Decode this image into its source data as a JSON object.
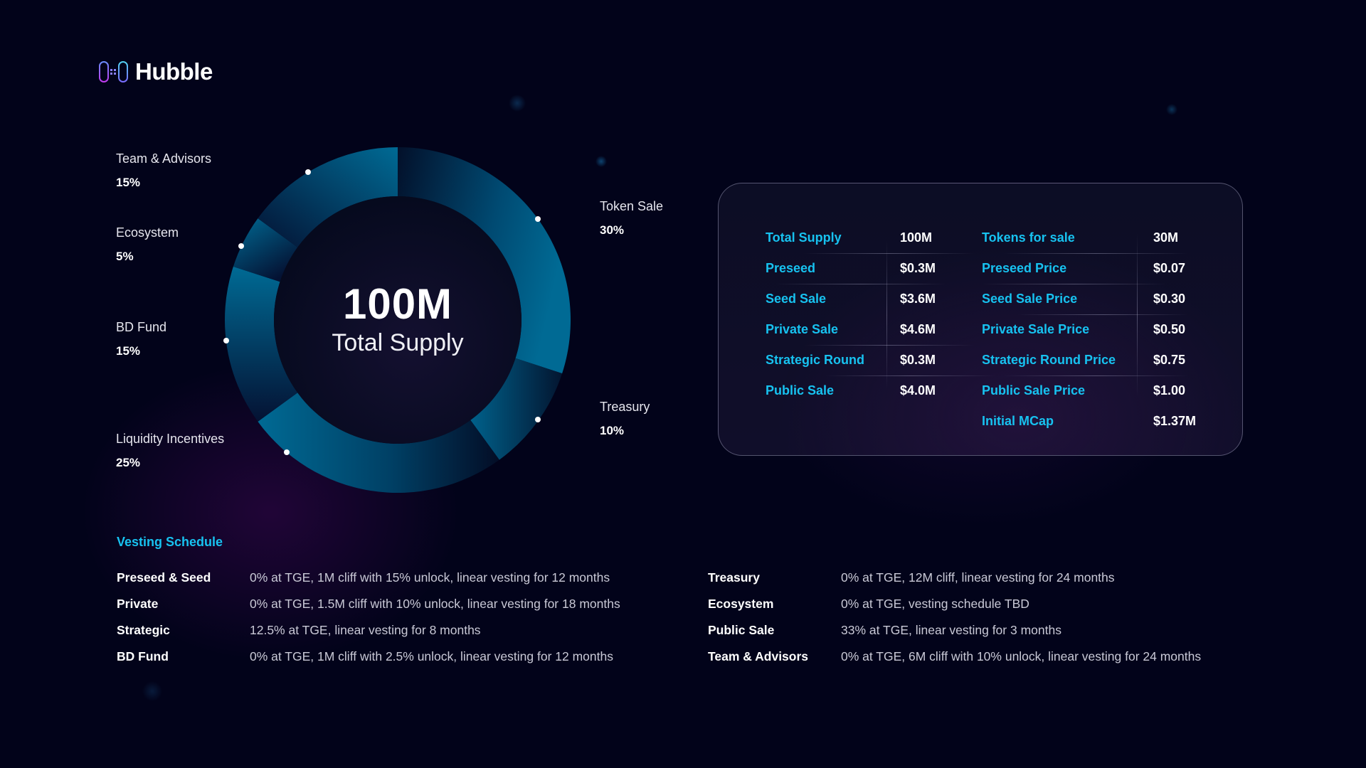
{
  "brand": {
    "name": "Hubble",
    "logo_icon": "hubble-logo-icon"
  },
  "colors": {
    "background": "#02031a",
    "accent_cyan": "#17c2f0",
    "segment_bright": "#006a94",
    "segment_dark": "#031028",
    "text_primary": "#ffffff",
    "text_secondary": "#c9c9d6"
  },
  "chart_data": {
    "type": "pie",
    "variant": "donut",
    "title": "Total Supply",
    "center_value": "100M",
    "center_label": "Total Supply",
    "categories": [
      "Token Sale",
      "Treasury",
      "Liquidity Incentives",
      "BD Fund",
      "Ecosystem",
      "Team & Advisors"
    ],
    "values": [
      30,
      10,
      25,
      15,
      5,
      15
    ],
    "unit": "%",
    "start_angle_deg": 0,
    "direction": "clockwise",
    "legend_position": "callouts"
  },
  "callouts": [
    {
      "name": "Team & Advisors",
      "pct": "15%"
    },
    {
      "name": "Ecosystem",
      "pct": "5%"
    },
    {
      "name": "BD Fund",
      "pct": "15%"
    },
    {
      "name": "Liquidity Incentives",
      "pct": "25%"
    },
    {
      "name": "Token Sale",
      "pct": "30%"
    },
    {
      "name": "Treasury",
      "pct": "10%"
    }
  ],
  "center": {
    "value": "100M",
    "label": "Total Supply"
  },
  "stats_card": {
    "left": [
      {
        "label": "Total Supply",
        "value": "100M"
      },
      {
        "label": "Preseed",
        "value": "$0.3M"
      },
      {
        "label": "Seed Sale",
        "value": "$3.6M"
      },
      {
        "label": "Private Sale",
        "value": "$4.6M"
      },
      {
        "label": "Strategic Round",
        "value": "$0.3M"
      },
      {
        "label": "Public Sale",
        "value": "$4.0M"
      }
    ],
    "right": [
      {
        "label": "Tokens for sale",
        "value": "30M"
      },
      {
        "label": "Preseed Price",
        "value": "$0.07"
      },
      {
        "label": "Seed Sale Price",
        "value": "$0.30"
      },
      {
        "label": "Private Sale Price",
        "value": "$0.50"
      },
      {
        "label": "Strategic Round Price",
        "value": "$0.75"
      },
      {
        "label": "Public Sale Price",
        "value": "$1.00"
      },
      {
        "label": "Initial MCap",
        "value": "$1.37M"
      }
    ]
  },
  "vesting": {
    "title": "Vesting Schedule",
    "left": [
      {
        "name": "Preseed & Seed",
        "terms": "0% at TGE, 1M cliff with 15% unlock, linear vesting for 12 months"
      },
      {
        "name": "Private",
        "terms": "0% at TGE, 1.5M cliff with 10% unlock, linear vesting for 18 months"
      },
      {
        "name": "Strategic",
        "terms": "12.5% at TGE, linear vesting for 8 months"
      },
      {
        "name": "BD Fund",
        "terms": "0% at TGE, 1M cliff with 2.5% unlock, linear vesting for 12 months"
      }
    ],
    "right": [
      {
        "name": "Treasury",
        "terms": "0% at TGE, 12M cliff, linear vesting for 24 months"
      },
      {
        "name": "Ecosystem",
        "terms": "0% at TGE, vesting schedule TBD"
      },
      {
        "name": "Public Sale",
        "terms": "33% at TGE, linear vesting for 3 months"
      },
      {
        "name": "Team & Advisors",
        "terms": "0% at TGE, 6M cliff with 10% unlock, linear vesting for 24 months"
      }
    ]
  }
}
